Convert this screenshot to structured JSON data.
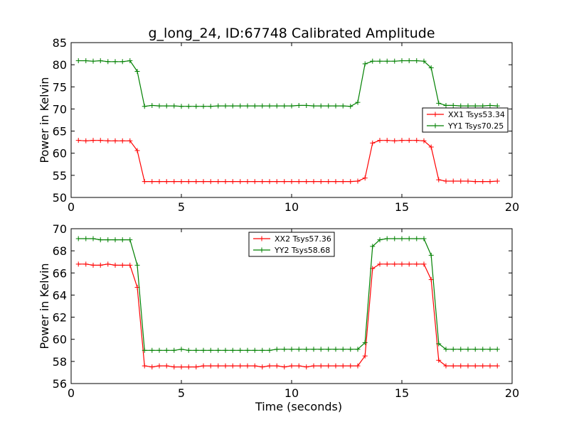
{
  "figure": {
    "title": "g_long_24, ID:67748 Calibrated Amplitude"
  },
  "chart_data": [
    {
      "type": "line",
      "title": "g_long_24, ID:67748 Calibrated Amplitude",
      "xlabel": "",
      "ylabel": "Power in Kelvin",
      "xlim": [
        0,
        20
      ],
      "ylim": [
        50,
        85
      ],
      "xticks": [
        0,
        5,
        10,
        15,
        20
      ],
      "yticks": [
        50,
        55,
        60,
        65,
        70,
        75,
        80,
        85
      ],
      "grid": false,
      "legend_position": "center-right",
      "x": [
        0.33,
        0.67,
        1.0,
        1.33,
        1.67,
        2.0,
        2.33,
        2.67,
        3.0,
        3.33,
        3.67,
        4.0,
        4.33,
        4.67,
        5.0,
        5.33,
        5.67,
        6.0,
        6.33,
        6.67,
        7.0,
        7.33,
        7.67,
        8.0,
        8.33,
        8.67,
        9.0,
        9.33,
        9.67,
        10.0,
        10.33,
        10.67,
        11.0,
        11.33,
        11.67,
        12.0,
        12.33,
        12.67,
        13.0,
        13.33,
        13.67,
        14.0,
        14.33,
        14.67,
        15.0,
        15.33,
        15.67,
        16.0,
        16.33,
        16.67,
        17.0,
        17.33,
        17.67,
        18.0,
        18.33,
        18.67,
        19.0,
        19.33
      ],
      "series": [
        {
          "name": "XX1 Tsys53.34",
          "color": "#ff0000",
          "values": [
            62.9,
            62.8,
            62.9,
            62.9,
            62.8,
            62.8,
            62.8,
            62.8,
            60.6,
            53.6,
            53.6,
            53.6,
            53.6,
            53.6,
            53.6,
            53.6,
            53.6,
            53.6,
            53.6,
            53.6,
            53.6,
            53.6,
            53.6,
            53.6,
            53.6,
            53.6,
            53.6,
            53.6,
            53.6,
            53.6,
            53.6,
            53.6,
            53.6,
            53.6,
            53.6,
            53.6,
            53.6,
            53.6,
            53.7,
            54.4,
            62.3,
            62.9,
            62.9,
            62.8,
            62.9,
            62.9,
            62.9,
            62.8,
            61.4,
            54.0,
            53.7,
            53.7,
            53.7,
            53.7,
            53.6,
            53.6,
            53.6,
            53.7
          ]
        },
        {
          "name": "YY1 Tsys70.25",
          "color": "#008000",
          "values": [
            80.9,
            80.9,
            80.8,
            80.9,
            80.7,
            80.7,
            80.7,
            80.9,
            78.5,
            70.6,
            70.8,
            70.7,
            70.7,
            70.7,
            70.6,
            70.6,
            70.6,
            70.6,
            70.6,
            70.7,
            70.7,
            70.7,
            70.7,
            70.7,
            70.7,
            70.7,
            70.7,
            70.7,
            70.7,
            70.7,
            70.8,
            70.8,
            70.7,
            70.7,
            70.7,
            70.7,
            70.7,
            70.6,
            71.5,
            80.2,
            80.8,
            80.8,
            80.8,
            80.8,
            80.9,
            80.9,
            80.9,
            80.8,
            79.3,
            71.3,
            70.8,
            70.8,
            70.7,
            70.7,
            70.7,
            70.7,
            70.8,
            70.7
          ]
        }
      ]
    },
    {
      "type": "line",
      "title": "",
      "xlabel": "Time (seconds)",
      "ylabel": "Power in Kelvin",
      "xlim": [
        0,
        20
      ],
      "ylim": [
        56,
        70
      ],
      "xticks": [
        0,
        5,
        10,
        15,
        20
      ],
      "yticks": [
        56,
        58,
        60,
        62,
        64,
        66,
        68,
        70
      ],
      "grid": false,
      "legend_position": "top-center",
      "x": [
        0.33,
        0.67,
        1.0,
        1.33,
        1.67,
        2.0,
        2.33,
        2.67,
        3.0,
        3.33,
        3.67,
        4.0,
        4.33,
        4.67,
        5.0,
        5.33,
        5.67,
        6.0,
        6.33,
        6.67,
        7.0,
        7.33,
        7.67,
        8.0,
        8.33,
        8.67,
        9.0,
        9.33,
        9.67,
        10.0,
        10.33,
        10.67,
        11.0,
        11.33,
        11.67,
        12.0,
        12.33,
        12.67,
        13.0,
        13.33,
        13.67,
        14.0,
        14.33,
        14.67,
        15.0,
        15.33,
        15.67,
        16.0,
        16.33,
        16.67,
        17.0,
        17.33,
        17.67,
        18.0,
        18.33,
        18.67,
        19.0,
        19.33
      ],
      "series": [
        {
          "name": "XX2 Tsys57.36",
          "color": "#ff0000",
          "values": [
            66.8,
            66.8,
            66.7,
            66.7,
            66.8,
            66.7,
            66.7,
            66.7,
            64.7,
            57.6,
            57.5,
            57.6,
            57.6,
            57.5,
            57.5,
            57.5,
            57.5,
            57.6,
            57.6,
            57.6,
            57.6,
            57.6,
            57.6,
            57.6,
            57.6,
            57.5,
            57.6,
            57.6,
            57.5,
            57.6,
            57.6,
            57.5,
            57.6,
            57.6,
            57.6,
            57.6,
            57.6,
            57.6,
            57.6,
            58.5,
            66.4,
            66.8,
            66.8,
            66.8,
            66.8,
            66.8,
            66.8,
            66.8,
            65.4,
            58.1,
            57.6,
            57.6,
            57.6,
            57.6,
            57.6,
            57.6,
            57.6,
            57.6
          ]
        },
        {
          "name": "YY2 Tsys58.68",
          "color": "#008000",
          "values": [
            69.1,
            69.1,
            69.1,
            69.0,
            69.0,
            69.0,
            69.0,
            69.0,
            66.7,
            59.0,
            59.0,
            59.0,
            59.0,
            59.0,
            59.1,
            59.0,
            59.0,
            59.0,
            59.0,
            59.0,
            59.0,
            59.0,
            59.0,
            59.0,
            59.0,
            59.0,
            59.0,
            59.1,
            59.1,
            59.1,
            59.1,
            59.1,
            59.1,
            59.1,
            59.1,
            59.1,
            59.1,
            59.1,
            59.1,
            59.7,
            68.4,
            69.0,
            69.1,
            69.1,
            69.1,
            69.1,
            69.1,
            69.1,
            67.6,
            59.6,
            59.1,
            59.1,
            59.1,
            59.1,
            59.1,
            59.1,
            59.1,
            59.1
          ]
        }
      ]
    }
  ]
}
